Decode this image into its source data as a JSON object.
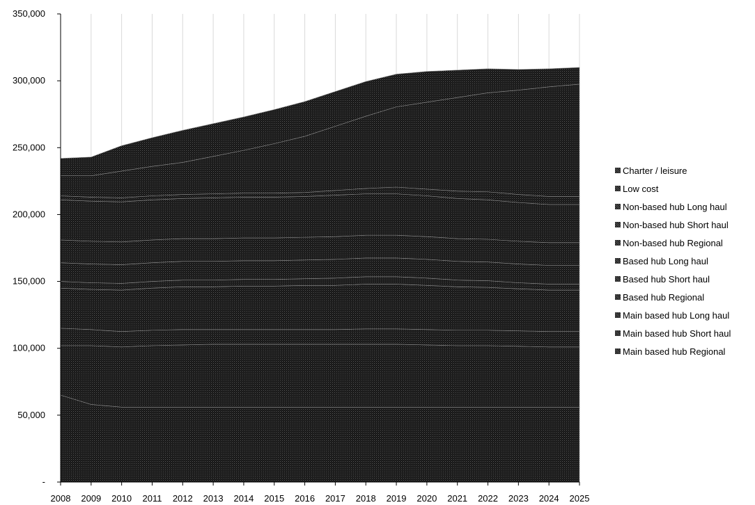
{
  "chart_data": {
    "type": "area",
    "stacked": true,
    "x": [
      "2008",
      "2009",
      "2010",
      "2011",
      "2012",
      "2013",
      "2014",
      "2015",
      "2016",
      "2017",
      "2018",
      "2019",
      "2020",
      "2021",
      "2022",
      "2023",
      "2024",
      "2025"
    ],
    "ylim": [
      0,
      350000
    ],
    "yticks": [
      {
        "value": 0,
        "label": "-"
      },
      {
        "value": 50000,
        "label": "50,000"
      },
      {
        "value": 100000,
        "label": "100,000"
      },
      {
        "value": 150000,
        "label": "150,000"
      },
      {
        "value": 200000,
        "label": "200,000"
      },
      {
        "value": 250000,
        "label": "250,000"
      },
      {
        "value": 300000,
        "label": "300,000"
      },
      {
        "value": 350000,
        "label": "350,000"
      }
    ],
    "grid": "vertical",
    "legend_position": "right",
    "fill_color": "#1a1a1a",
    "series": [
      {
        "name": "Main based hub Regional",
        "values": [
          65000,
          58000,
          56000,
          56000,
          56000,
          56000,
          56000,
          56000,
          56000,
          56000,
          56000,
          56000,
          56000,
          56000,
          56000,
          56000,
          56000,
          56000
        ]
      },
      {
        "name": "Main based hub Short haul",
        "values": [
          37000,
          44000,
          45000,
          46000,
          46500,
          47000,
          47000,
          47000,
          47000,
          47000,
          47000,
          47000,
          46500,
          46000,
          46000,
          45500,
          45000,
          45000
        ]
      },
      {
        "name": "Main based hub Long haul",
        "values": [
          13000,
          12000,
          11500,
          11500,
          11500,
          11000,
          11000,
          11000,
          11000,
          11000,
          11500,
          11500,
          11500,
          11500,
          11500,
          11500,
          11500,
          11500
        ]
      },
      {
        "name": "Based hub Regional",
        "values": [
          30000,
          30000,
          31000,
          31500,
          32000,
          32000,
          32500,
          32500,
          33000,
          33000,
          33500,
          33500,
          33000,
          32500,
          32000,
          31500,
          31000,
          31000
        ]
      },
      {
        "name": "Based hub Short haul",
        "values": [
          5000,
          5000,
          5000,
          5000,
          5000,
          5000,
          5000,
          5000,
          5000,
          5500,
          5500,
          5500,
          5500,
          5000,
          5000,
          4500,
          4500,
          4500
        ]
      },
      {
        "name": "Based hub Long haul",
        "values": [
          14000,
          14000,
          14000,
          14000,
          14000,
          14000,
          14000,
          14000,
          14000,
          14000,
          14000,
          14000,
          14000,
          14000,
          14000,
          14000,
          14000,
          14000
        ]
      },
      {
        "name": "Non-based hub Regional",
        "values": [
          17000,
          17000,
          17000,
          17000,
          17000,
          17000,
          17000,
          17000,
          17000,
          17000,
          17000,
          17000,
          17000,
          17000,
          17000,
          17000,
          17000,
          17000
        ]
      },
      {
        "name": "Non-based hub Short haul",
        "values": [
          30000,
          30000,
          30000,
          30000,
          30000,
          30500,
          30500,
          30500,
          30500,
          31000,
          31000,
          31000,
          30500,
          30000,
          29500,
          29000,
          28500,
          28500
        ]
      },
      {
        "name": "Non-based hub Long haul",
        "values": [
          3000,
          3000,
          3000,
          3000,
          3000,
          3000,
          3000,
          3000,
          3000,
          3500,
          4000,
          5000,
          5000,
          5500,
          6000,
          6000,
          6000,
          6000
        ]
      },
      {
        "name": "Low cost",
        "values": [
          15000,
          16000,
          20000,
          22000,
          24000,
          28000,
          32000,
          37000,
          42000,
          48000,
          54000,
          60000,
          65000,
          70000,
          74000,
          78000,
          82000,
          84000
        ]
      },
      {
        "name": "Charter / leisure",
        "values": [
          13000,
          14000,
          19000,
          21500,
          24000,
          24500,
          25000,
          25500,
          26000,
          26000,
          26000,
          24500,
          23000,
          20500,
          18000,
          15500,
          13500,
          12500
        ]
      }
    ]
  },
  "legend": [
    "Charter / leisure",
    "Low cost",
    "Non-based hub Long haul",
    "Non-based hub Short haul",
    "Non-based hub Regional",
    "Based hub Long haul",
    "Based hub Short haul",
    "Based hub Regional",
    "Main based hub Long haul",
    "Main based hub Short haul",
    "Main based hub Regional"
  ]
}
